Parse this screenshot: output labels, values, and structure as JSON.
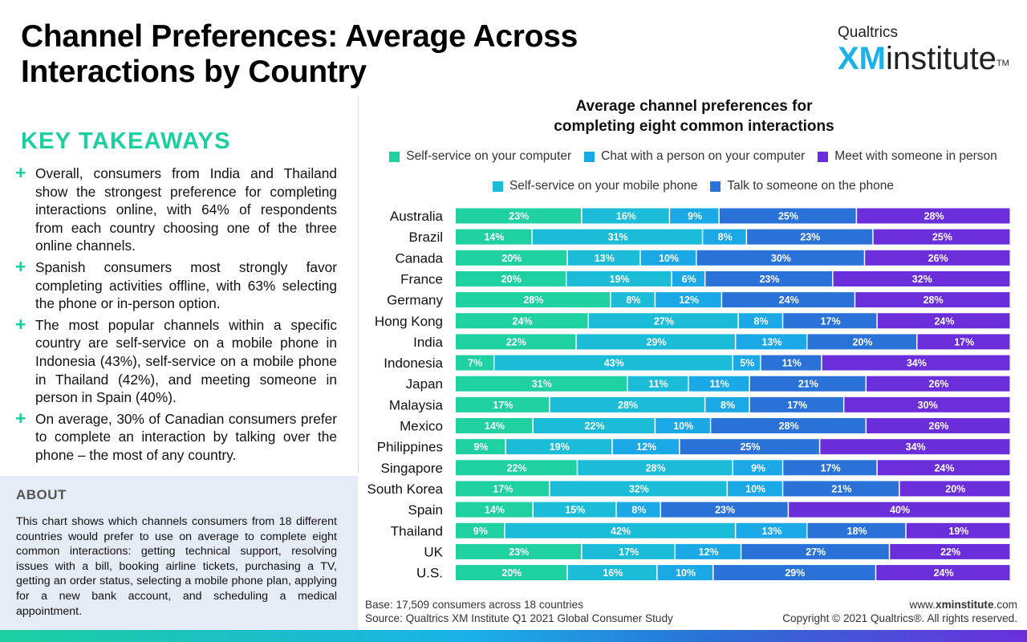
{
  "header": {
    "title_line1": "Channel Preferences: Average Across",
    "title_line2": "Interactions by Country"
  },
  "logo": {
    "top": "Qualtrics",
    "xm": "XM",
    "word": "institute",
    "tm": "TM"
  },
  "takeaways": {
    "title": "KEY TAKEAWAYS",
    "items": [
      "Overall, consumers from India and Thailand show the strongest preference for completing interactions online, with 64% of respondents from each country choosing one of the three online channels.",
      "Spanish consumers most strongly favor completing activities offline, with 63% selecting the phone or in-person option.",
      "The most popular channels within a specific country are self-service on a mobile phone in Indonesia (43%), self-service on a mobile phone in Thailand (42%), and meeting someone in person in Spain (40%).",
      "On average, 30% of Canadian consumers prefer to complete an interaction by talking over the phone – the most of any country."
    ]
  },
  "about": {
    "title": "ABOUT",
    "text": "This chart shows which channels consumers from 18 different countries would prefer to use on average to complete eight common interactions: getting technical support, resolving issues with a bill, booking airline tickets, purchasing a TV, getting an order status, selecting a mobile phone plan, applying for a new bank account, and scheduling a medical appointment."
  },
  "footer": {
    "base": "Base: 17,509 consumers across 18 countries",
    "source": "Source: Qualtrics XM Institute Q1 2021 Global Consumer Study",
    "website_prefix": "www.",
    "website_bold": "xminstitute",
    "website_suffix": ".com",
    "copyright": "Copyright © 2021 Qualtrics®. All rights reserved."
  },
  "chart_data": {
    "type": "bar",
    "orientation": "horizontal",
    "stacked": true,
    "title_line1": "Average channel preferences for",
    "title_line2": "completing eight common interactions",
    "categories": [
      "Australia",
      "Brazil",
      "Canada",
      "France",
      "Germany",
      "Hong Kong",
      "India",
      "Indonesia",
      "Japan",
      "Malaysia",
      "Mexico",
      "Philippines",
      "Singapore",
      "South Korea",
      "Spain",
      "Thailand",
      "UK",
      "U.S."
    ],
    "series": [
      {
        "name": "Self-service on your computer",
        "color": "#1fd0a0",
        "values": [
          23,
          14,
          20,
          20,
          28,
          24,
          22,
          7,
          31,
          17,
          14,
          9,
          22,
          17,
          14,
          9,
          23,
          20
        ]
      },
      {
        "name": "Self-service on your mobile phone",
        "color": "#1bbcd8",
        "values": [
          16,
          31,
          13,
          19,
          8,
          27,
          29,
          43,
          11,
          28,
          22,
          19,
          28,
          32,
          15,
          42,
          17,
          16
        ]
      },
      {
        "name": "Chat with a person on your computer",
        "color": "#1aa8e6",
        "values": [
          9,
          8,
          10,
          6,
          12,
          8,
          13,
          5,
          11,
          8,
          10,
          12,
          9,
          10,
          8,
          13,
          12,
          10
        ]
      },
      {
        "name": "Talk to someone on the phone",
        "color": "#2a72d8",
        "values": [
          25,
          23,
          30,
          23,
          24,
          17,
          20,
          11,
          21,
          17,
          28,
          25,
          17,
          21,
          23,
          18,
          27,
          29
        ]
      },
      {
        "name": "Meet with someone in person",
        "color": "#6a2edb",
        "values": [
          28,
          25,
          26,
          32,
          28,
          24,
          17,
          34,
          26,
          30,
          26,
          34,
          24,
          20,
          40,
          19,
          22,
          24
        ]
      }
    ],
    "legend_rows": [
      [
        0,
        2,
        4
      ],
      [
        1,
        3
      ]
    ],
    "value_suffix": "%"
  }
}
